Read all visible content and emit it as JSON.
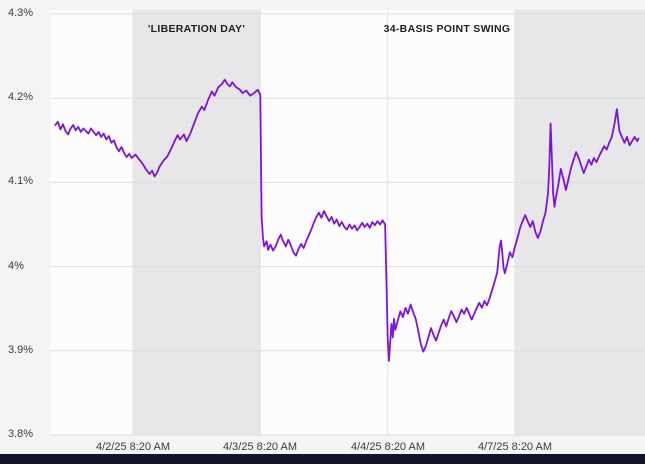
{
  "chart_data": {
    "type": "line",
    "title": "",
    "xlabel": "",
    "ylabel": "",
    "x_unit": "trading sessions (tick marks at 8:20 AM each trading day, weekend compressed)",
    "y_unit": "percent yield",
    "y_range": [
      3.8,
      4.3
    ],
    "x_range": [
      -0.61,
      4.03
    ],
    "grid": true,
    "line_color": "#7c15d7",
    "band_color": "#e7e7e9",
    "y_ticks": [
      {
        "v": 3.8,
        "label": "3.8%"
      },
      {
        "v": 3.9,
        "label": "3.9%"
      },
      {
        "v": 4.0,
        "label": "4%"
      },
      {
        "v": 4.1,
        "label": "4.1%"
      },
      {
        "v": 4.2,
        "label": "4.2%"
      },
      {
        "v": 4.3,
        "label": "4.3%"
      }
    ],
    "x_ticks": [
      {
        "t": 0,
        "label": "4/2/25 8:20 AM"
      },
      {
        "t": 1,
        "label": "4/3/25 8:20 AM"
      },
      {
        "t": 2,
        "label": "4/4/25 8:20 AM"
      },
      {
        "t": 3,
        "label": "4/7/25 8:20 AM"
      }
    ],
    "bands": [
      {
        "from": 0,
        "to": 1
      },
      {
        "from": 3,
        "to": 4.03
      }
    ],
    "annotations": [
      {
        "text": "'LIBERATION DAY'"
      },
      {
        "text": "34-BASIS POINT SWING"
      }
    ],
    "series": [
      {
        "name": "yield",
        "points": [
          [
            -0.61,
            4.168
          ],
          [
            -0.59,
            4.172
          ],
          [
            -0.57,
            4.163
          ],
          [
            -0.55,
            4.169
          ],
          [
            -0.53,
            4.161
          ],
          [
            -0.51,
            4.157
          ],
          [
            -0.49,
            4.164
          ],
          [
            -0.47,
            4.168
          ],
          [
            -0.45,
            4.162
          ],
          [
            -0.43,
            4.166
          ],
          [
            -0.41,
            4.16
          ],
          [
            -0.39,
            4.164
          ],
          [
            -0.37,
            4.161
          ],
          [
            -0.35,
            4.158
          ],
          [
            -0.33,
            4.164
          ],
          [
            -0.31,
            4.16
          ],
          [
            -0.29,
            4.156
          ],
          [
            -0.27,
            4.16
          ],
          [
            -0.25,
            4.154
          ],
          [
            -0.23,
            4.158
          ],
          [
            -0.21,
            4.151
          ],
          [
            -0.19,
            4.155
          ],
          [
            -0.17,
            4.147
          ],
          [
            -0.15,
            4.15
          ],
          [
            -0.13,
            4.142
          ],
          [
            -0.11,
            4.137
          ],
          [
            -0.09,
            4.142
          ],
          [
            -0.07,
            4.135
          ],
          [
            -0.05,
            4.13
          ],
          [
            -0.03,
            4.134
          ],
          [
            -0.01,
            4.129
          ],
          [
            0.02,
            4.133
          ],
          [
            0.05,
            4.127
          ],
          [
            0.08,
            4.121
          ],
          [
            0.1,
            4.116
          ],
          [
            0.13,
            4.11
          ],
          [
            0.15,
            4.114
          ],
          [
            0.17,
            4.107
          ],
          [
            0.19,
            4.112
          ],
          [
            0.21,
            4.119
          ],
          [
            0.24,
            4.126
          ],
          [
            0.27,
            4.131
          ],
          [
            0.3,
            4.14
          ],
          [
            0.33,
            4.15
          ],
          [
            0.35,
            4.156
          ],
          [
            0.37,
            4.151
          ],
          [
            0.4,
            4.157
          ],
          [
            0.42,
            4.149
          ],
          [
            0.45,
            4.158
          ],
          [
            0.48,
            4.17
          ],
          [
            0.51,
            4.182
          ],
          [
            0.54,
            4.19
          ],
          [
            0.56,
            4.186
          ],
          [
            0.59,
            4.198
          ],
          [
            0.62,
            4.208
          ],
          [
            0.64,
            4.203
          ],
          [
            0.67,
            4.213
          ],
          [
            0.7,
            4.217
          ],
          [
            0.72,
            4.222
          ],
          [
            0.74,
            4.217
          ],
          [
            0.76,
            4.214
          ],
          [
            0.78,
            4.219
          ],
          [
            0.81,
            4.213
          ],
          [
            0.84,
            4.21
          ],
          [
            0.86,
            4.206
          ],
          [
            0.89,
            4.209
          ],
          [
            0.92,
            4.203
          ],
          [
            0.95,
            4.206
          ],
          [
            0.98,
            4.21
          ],
          [
            1.0,
            4.204
          ],
          [
            1.01,
            4.06
          ],
          [
            1.02,
            4.035
          ],
          [
            1.03,
            4.024
          ],
          [
            1.05,
            4.03
          ],
          [
            1.06,
            4.02
          ],
          [
            1.08,
            4.026
          ],
          [
            1.1,
            4.019
          ],
          [
            1.12,
            4.024
          ],
          [
            1.14,
            4.032
          ],
          [
            1.16,
            4.038
          ],
          [
            1.18,
            4.03
          ],
          [
            1.2,
            4.024
          ],
          [
            1.22,
            4.032
          ],
          [
            1.24,
            4.025
          ],
          [
            1.26,
            4.017
          ],
          [
            1.28,
            4.013
          ],
          [
            1.3,
            4.021
          ],
          [
            1.32,
            4.027
          ],
          [
            1.34,
            4.022
          ],
          [
            1.36,
            4.03
          ],
          [
            1.38,
            4.037
          ],
          [
            1.4,
            4.044
          ],
          [
            1.42,
            4.052
          ],
          [
            1.44,
            4.059
          ],
          [
            1.46,
            4.064
          ],
          [
            1.48,
            4.058
          ],
          [
            1.5,
            4.066
          ],
          [
            1.52,
            4.06
          ],
          [
            1.54,
            4.054
          ],
          [
            1.56,
            4.059
          ],
          [
            1.58,
            4.051
          ],
          [
            1.6,
            4.056
          ],
          [
            1.62,
            4.048
          ],
          [
            1.64,
            4.053
          ],
          [
            1.66,
            4.047
          ],
          [
            1.68,
            4.044
          ],
          [
            1.7,
            4.05
          ],
          [
            1.72,
            4.045
          ],
          [
            1.74,
            4.049
          ],
          [
            1.76,
            4.043
          ],
          [
            1.78,
            4.047
          ],
          [
            1.8,
            4.052
          ],
          [
            1.82,
            4.047
          ],
          [
            1.84,
            4.051
          ],
          [
            1.86,
            4.046
          ],
          [
            1.88,
            4.053
          ],
          [
            1.9,
            4.049
          ],
          [
            1.92,
            4.054
          ],
          [
            1.94,
            4.05
          ],
          [
            1.96,
            4.055
          ],
          [
            1.98,
            4.05
          ],
          [
            1.99,
            3.985
          ],
          [
            2.0,
            3.915
          ],
          [
            2.01,
            3.888
          ],
          [
            2.02,
            3.91
          ],
          [
            2.03,
            3.932
          ],
          [
            2.04,
            3.916
          ],
          [
            2.05,
            3.938
          ],
          [
            2.06,
            3.925
          ],
          [
            2.08,
            3.936
          ],
          [
            2.1,
            3.947
          ],
          [
            2.12,
            3.94
          ],
          [
            2.14,
            3.951
          ],
          [
            2.16,
            3.944
          ],
          [
            2.18,
            3.955
          ],
          [
            2.2,
            3.946
          ],
          [
            2.22,
            3.938
          ],
          [
            2.24,
            3.924
          ],
          [
            2.26,
            3.908
          ],
          [
            2.28,
            3.899
          ],
          [
            2.3,
            3.906
          ],
          [
            2.32,
            3.916
          ],
          [
            2.34,
            3.927
          ],
          [
            2.36,
            3.919
          ],
          [
            2.38,
            3.912
          ],
          [
            2.4,
            3.921
          ],
          [
            2.42,
            3.93
          ],
          [
            2.44,
            3.937
          ],
          [
            2.46,
            3.929
          ],
          [
            2.48,
            3.939
          ],
          [
            2.5,
            3.947
          ],
          [
            2.52,
            3.941
          ],
          [
            2.54,
            3.934
          ],
          [
            2.56,
            3.941
          ],
          [
            2.58,
            3.949
          ],
          [
            2.6,
            3.944
          ],
          [
            2.62,
            3.951
          ],
          [
            2.64,
            3.944
          ],
          [
            2.66,
            3.937
          ],
          [
            2.68,
            3.944
          ],
          [
            2.7,
            3.951
          ],
          [
            2.72,
            3.957
          ],
          [
            2.74,
            3.951
          ],
          [
            2.76,
            3.959
          ],
          [
            2.78,
            3.954
          ],
          [
            2.8,
            3.962
          ],
          [
            2.82,
            3.972
          ],
          [
            2.84,
            3.982
          ],
          [
            2.86,
            3.993
          ],
          [
            2.87,
            4.008
          ],
          [
            2.88,
            4.024
          ],
          [
            2.89,
            4.031
          ],
          [
            2.9,
            4.016
          ],
          [
            2.91,
            3.999
          ],
          [
            2.92,
            3.992
          ],
          [
            2.94,
            4.004
          ],
          [
            2.96,
            4.017
          ],
          [
            2.98,
            4.011
          ],
          [
            3.0,
            4.024
          ],
          [
            3.02,
            4.034
          ],
          [
            3.04,
            4.046
          ],
          [
            3.06,
            4.054
          ],
          [
            3.08,
            4.061
          ],
          [
            3.1,
            4.054
          ],
          [
            3.12,
            4.047
          ],
          [
            3.14,
            4.054
          ],
          [
            3.16,
            4.041
          ],
          [
            3.18,
            4.034
          ],
          [
            3.2,
            4.042
          ],
          [
            3.22,
            4.054
          ],
          [
            3.24,
            4.064
          ],
          [
            3.26,
            4.088
          ],
          [
            3.27,
            4.122
          ],
          [
            3.28,
            4.17
          ],
          [
            3.29,
            4.128
          ],
          [
            3.3,
            4.086
          ],
          [
            3.31,
            4.071
          ],
          [
            3.32,
            4.081
          ],
          [
            3.34,
            4.097
          ],
          [
            3.36,
            4.116
          ],
          [
            3.38,
            4.104
          ],
          [
            3.4,
            4.091
          ],
          [
            3.42,
            4.104
          ],
          [
            3.44,
            4.117
          ],
          [
            3.46,
            4.127
          ],
          [
            3.48,
            4.136
          ],
          [
            3.5,
            4.129
          ],
          [
            3.52,
            4.12
          ],
          [
            3.54,
            4.111
          ],
          [
            3.56,
            4.119
          ],
          [
            3.58,
            4.127
          ],
          [
            3.6,
            4.121
          ],
          [
            3.62,
            4.129
          ],
          [
            3.64,
            4.124
          ],
          [
            3.66,
            4.131
          ],
          [
            3.68,
            4.137
          ],
          [
            3.7,
            4.143
          ],
          [
            3.72,
            4.139
          ],
          [
            3.74,
            4.147
          ],
          [
            3.76,
            4.154
          ],
          [
            3.78,
            4.168
          ],
          [
            3.8,
            4.187
          ],
          [
            3.81,
            4.174
          ],
          [
            3.82,
            4.161
          ],
          [
            3.84,
            4.154
          ],
          [
            3.86,
            4.147
          ],
          [
            3.88,
            4.154
          ],
          [
            3.9,
            4.144
          ],
          [
            3.92,
            4.149
          ],
          [
            3.94,
            4.154
          ],
          [
            3.96,
            4.149
          ],
          [
            3.97,
            4.152
          ]
        ]
      }
    ]
  }
}
